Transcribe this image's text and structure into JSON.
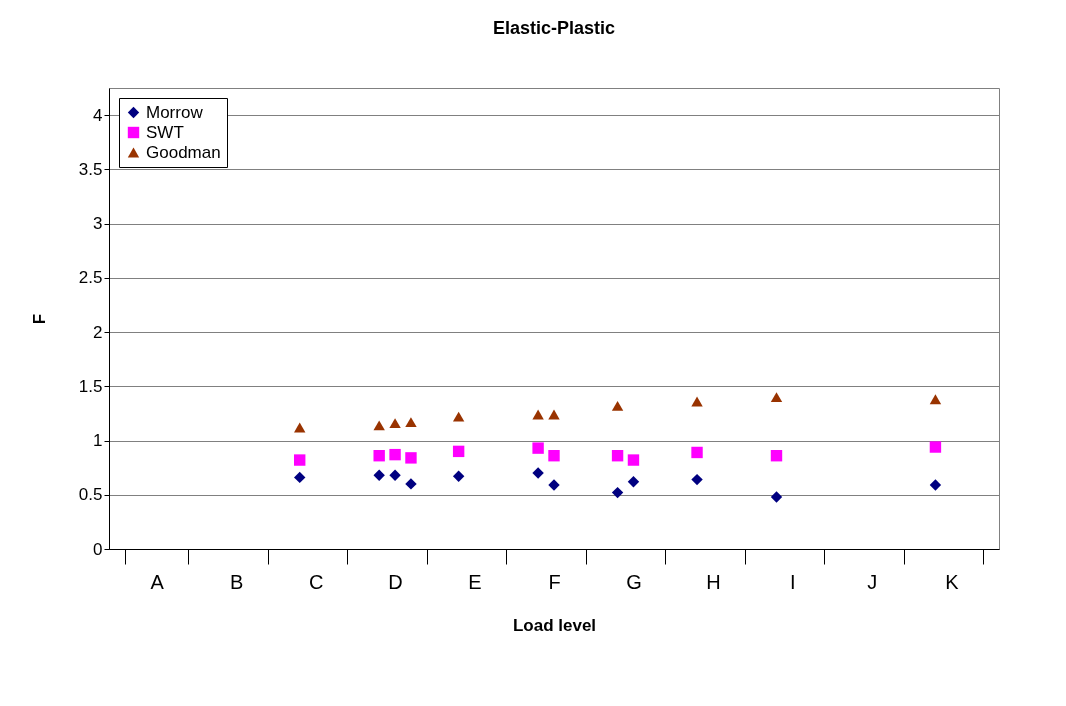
{
  "chart_data": {
    "type": "scatter",
    "title": "Elastic-Plastic",
    "xlabel": "Load level",
    "ylabel": "F",
    "categories": [
      "A",
      "B",
      "C",
      "D",
      "E",
      "F",
      "G",
      "H",
      "I",
      "J",
      "K"
    ],
    "ylim": [
      0,
      4.25
    ],
    "yticks": [
      0,
      0.5,
      1,
      1.5,
      2,
      2.5,
      3,
      3.5,
      4
    ],
    "grid": "y",
    "legend": "top left",
    "series": [
      {
        "name": "Morrow",
        "color": "#000080",
        "marker": "diamond",
        "x": [
          "C",
          "D",
          "D",
          "D",
          "E",
          "F",
          "F",
          "G",
          "G",
          "H",
          "I",
          "K"
        ],
        "values": [
          0.66,
          0.68,
          0.68,
          0.6,
          0.67,
          0.7,
          0.59,
          0.52,
          0.62,
          0.64,
          0.48,
          0.59
        ]
      },
      {
        "name": "SWT",
        "color": "#ff00ff",
        "marker": "square",
        "x": [
          "C",
          "D",
          "D",
          "D",
          "E",
          "F",
          "F",
          "G",
          "G",
          "H",
          "I",
          "K"
        ],
        "values": [
          0.82,
          0.86,
          0.87,
          0.84,
          0.9,
          0.93,
          0.86,
          0.86,
          0.82,
          0.89,
          0.86,
          0.94
        ]
      },
      {
        "name": "Goodman",
        "color": "#993300",
        "marker": "triangle",
        "x": [
          "C",
          "D",
          "D",
          "D",
          "E",
          "F",
          "F",
          "G",
          "H",
          "I",
          "K"
        ],
        "values": [
          1.12,
          1.14,
          1.16,
          1.17,
          1.22,
          1.24,
          1.24,
          1.32,
          1.36,
          1.4,
          1.38
        ]
      }
    ]
  }
}
